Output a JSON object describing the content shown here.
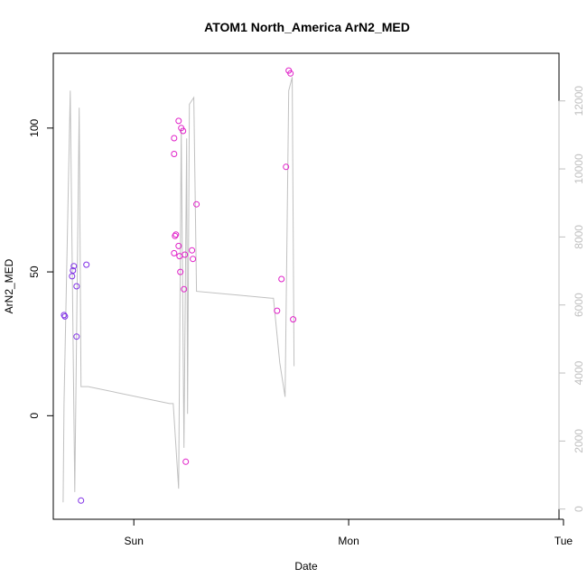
{
  "chart_data": {
    "type": "scatter",
    "title": "ATOM1 North_America ArN2_MED",
    "xlabel": "Date",
    "ylabel": "ArN2_MED",
    "x_ticks": [
      "Sun",
      "Mon",
      "Tue"
    ],
    "x_tick_values": [
      0,
      24,
      48
    ],
    "xlim": [
      -9,
      47.5
    ],
    "ylim": [
      -36,
      126
    ],
    "y_ticks": [
      0,
      50,
      100
    ],
    "y2lim": [
      -300,
      13400
    ],
    "y2_ticks": [
      0,
      2000,
      4000,
      6000,
      8000,
      10000,
      12000
    ],
    "grid": false,
    "colors": {
      "line": "#c0c0c0",
      "ring_a": "#7f2fe6",
      "ring_b": "#e020c8",
      "axis": "#000000",
      "axis_right": "#bfbfbf"
    },
    "series": [
      {
        "kind": "points",
        "color_role": "ring_a",
        "x": [
          -7.8,
          -7.7,
          -6.9,
          -6.8,
          -6.7,
          -6.4,
          -6.4,
          -5.9,
          -5.3
        ],
        "y": [
          35,
          34.5,
          48.5,
          50.5,
          52,
          45,
          27.5,
          -29.5,
          52.5
        ]
      },
      {
        "kind": "points",
        "color_role": "ring_b",
        "x": [
          4.5,
          4.5,
          4.5,
          4.6,
          4.7,
          5.0,
          5.0,
          5.1,
          5.2,
          5.3,
          5.5,
          5.6,
          5.7,
          5.8,
          6.5,
          6.6,
          7.0,
          16.0,
          16.5,
          17.0,
          17.3,
          17.5,
          17.8
        ],
        "y": [
          56.5,
          96.5,
          91,
          62.5,
          63,
          102.5,
          59,
          55.5,
          50,
          100,
          99,
          44,
          56,
          -16,
          57.5,
          54.5,
          73.5,
          36.5,
          47.5,
          86.5,
          120,
          119,
          33.5
        ]
      },
      {
        "kind": "line",
        "color_role": "line",
        "axis": "right",
        "x": [
          -7.9,
          -7.8,
          -7.1,
          -6.6,
          -6.1,
          -5.9,
          -5.6,
          -5.1,
          4.0,
          4.2,
          4.4,
          5.0,
          5.3,
          5.6,
          5.9,
          6.0,
          6.2,
          6.7,
          7.0,
          15.4,
          15.6,
          16.3,
          16.9,
          17.3,
          17.7,
          17.9
        ],
        "y": [
          200,
          3100,
          12300,
          500,
          11800,
          3600,
          3600,
          3600,
          3100,
          3100,
          3100,
          600,
          11200,
          1800,
          10900,
          2800,
          11900,
          12100,
          6400,
          6200,
          6200,
          4300,
          3300,
          12300,
          12700,
          4200
        ]
      }
    ]
  }
}
